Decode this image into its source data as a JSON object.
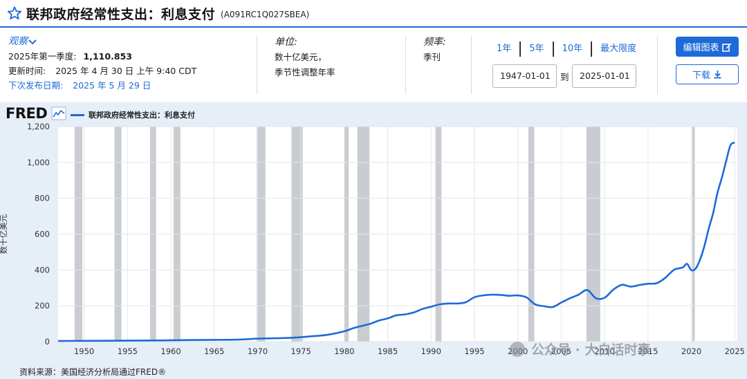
{
  "header": {
    "title": "联邦政府经常性支出：利息支付",
    "series_id": "(A091RC1Q027SBEA)",
    "star_icon": "star-outline-icon"
  },
  "observation": {
    "label": "观察",
    "period_label": "2025年第一季度:",
    "period_value": "1,110.853",
    "updated_label": "更新时间:",
    "updated_value": "2025 年 4 月 30 日 上午 9:40 CDT",
    "next_label": "下次发布日期:",
    "next_value": "2025 年 5 月 29 日"
  },
  "units": {
    "label": "单位:",
    "line1": "数十亿美元，",
    "line2": "季节性调整年率"
  },
  "frequency": {
    "label": "频率:",
    "value": "季刊"
  },
  "range": {
    "options": [
      "1年",
      "5年",
      "10年",
      "最大限度"
    ],
    "start": "1947-01-01",
    "to_label": "到",
    "end": "2025-01-01"
  },
  "buttons": {
    "edit": "编辑图表",
    "download": "下载"
  },
  "chart_logo": "FRED",
  "source": "资料来源：美国经济分析局通过FRED®",
  "watermark": "公众号 · 大白话时事",
  "colors": {
    "accent": "#1d6ad8",
    "line": "#1d6ad8",
    "recession": "#c9ccd1",
    "panel": "#e6eef8"
  },
  "chart_data": {
    "type": "line",
    "title": "",
    "xlabel": "",
    "ylabel": "数十亿美元",
    "xlim": [
      1947.0,
      2025.3
    ],
    "ylim": [
      0,
      1200
    ],
    "x_ticks": [
      "1950",
      "1955",
      "1960",
      "1965",
      "1970",
      "1975",
      "1980",
      "1985",
      "1990",
      "1995",
      "2000",
      "2005",
      "2010",
      "2015",
      "2020",
      "2025"
    ],
    "y_ticks": [
      "0",
      "200",
      "400",
      "600",
      "800",
      "1,000",
      "1,200"
    ],
    "grid": true,
    "legend": "top-left",
    "series": [
      {
        "name": "联邦政府经常性支出：利息支付",
        "x": [
          1947,
          1950,
          1953,
          1956,
          1959,
          1962,
          1965,
          1968,
          1970,
          1972,
          1974,
          1976,
          1978,
          1980,
          1981,
          1982,
          1983,
          1984,
          1985,
          1986,
          1987,
          1988,
          1989,
          1990,
          1991,
          1992,
          1993,
          1994,
          1995,
          1996,
          1997,
          1998,
          1999,
          2000,
          2001,
          2002,
          2003,
          2004,
          2005,
          2006,
          2007,
          2008,
          2009,
          2010,
          2011,
          2012,
          2013,
          2014,
          2015,
          2016,
          2017,
          2018,
          2019,
          2019.5,
          2020,
          2020.5,
          2021,
          2021.5,
          2022,
          2022.5,
          2023,
          2023.5,
          2024,
          2024.5,
          2025
        ],
        "values": [
          4,
          4.5,
          5,
          6,
          7,
          9,
          10,
          12,
          17,
          19,
          22,
          29,
          38,
          58,
          75,
          88,
          100,
          118,
          130,
          147,
          152,
          163,
          182,
          195,
          208,
          213,
          213,
          220,
          248,
          258,
          262,
          261,
          256,
          258,
          247,
          208,
          198,
          193,
          218,
          242,
          262,
          288,
          242,
          245,
          290,
          317,
          307,
          316,
          323,
          326,
          356,
          401,
          414,
          434,
          399,
          408,
          458,
          532,
          630,
          715,
          828,
          911,
          1005,
          1095,
          1111
        ]
      }
    ],
    "recessions": [
      [
        1948.9,
        1949.8
      ],
      [
        1953.5,
        1954.3
      ],
      [
        1957.6,
        1958.3
      ],
      [
        1960.3,
        1961.1
      ],
      [
        1969.9,
        1970.9
      ],
      [
        1973.9,
        1975.2
      ],
      [
        1980.0,
        1980.5
      ],
      [
        1981.5,
        1982.9
      ],
      [
        1990.5,
        1991.2
      ],
      [
        2001.2,
        2001.9
      ],
      [
        2007.9,
        2009.5
      ],
      [
        2020.1,
        2020.4
      ]
    ]
  }
}
